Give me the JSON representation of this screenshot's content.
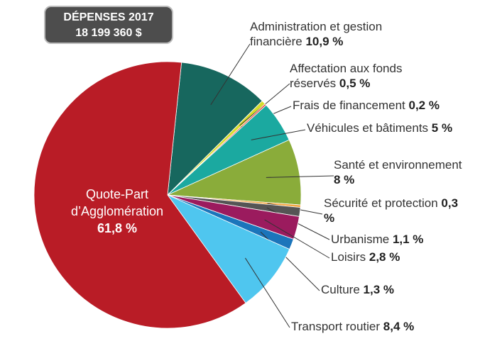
{
  "chart_data": {
    "type": "pie",
    "title": "DÉPENSES 2017",
    "subtitle": "18 199 360 $",
    "categories": [
      "Administration et gestion financière",
      "Affectation aux fonds réservés",
      "Frais de financement",
      "Véhicules et bâtiments",
      "Santé et environnement",
      "Sécurité et protection",
      "Urbanisme",
      "Loisirs",
      "Culture",
      "Transport routier",
      "Quote-Part d’Agglomération"
    ],
    "values": [
      10.9,
      0.5,
      0.2,
      5,
      8,
      0.3,
      1.1,
      2.8,
      1.3,
      8.4,
      61.8
    ],
    "value_labels": [
      "10,9 %",
      "0,5 %",
      "0,2 %",
      "5 %",
      "8 %",
      "0,3 %",
      "1,1 %",
      "2,8 %",
      "1,3 %",
      "8,4 %",
      "61,8 %"
    ],
    "colors": [
      "#17675e",
      "#d6dd2a",
      "#e8463c",
      "#1ba9a0",
      "#8aac3a",
      "#f3a541",
      "#555555",
      "#9b1b5e",
      "#1b75bb",
      "#4fc6ef",
      "#b91c26"
    ]
  }
}
